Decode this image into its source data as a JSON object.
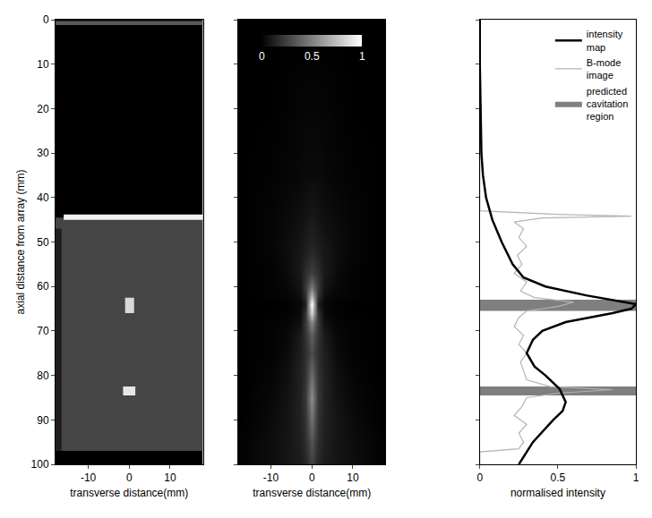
{
  "chart_data": [
    {
      "type": "image",
      "xlabel": "transverse distance(mm)",
      "ylabel": "axial distance from array (mm)",
      "xlim": [
        -18,
        18
      ],
      "xticks": [
        -10,
        0,
        10
      ],
      "ylim": [
        100,
        0
      ],
      "yticks": [
        0,
        10,
        20,
        30,
        40,
        50,
        60,
        70,
        80,
        90,
        100
      ],
      "regions": [
        {
          "x": [
            -18,
            18
          ],
          "y": [
            0,
            100
          ],
          "value": 0
        },
        {
          "x": [
            -18,
            18
          ],
          "y": [
            0.3,
            1.2
          ],
          "value": 0.35
        },
        {
          "x": [
            -18,
            18
          ],
          "y": [
            44.5,
            97
          ],
          "value": 0.27
        },
        {
          "x": [
            -18,
            -16.5
          ],
          "y": [
            47,
            97
          ],
          "value": 0.12
        },
        {
          "x": [
            -16,
            18
          ],
          "y": [
            43.8,
            45
          ],
          "value": 0.95
        },
        {
          "x": [
            -1,
            1.2
          ],
          "y": [
            62.5,
            66
          ],
          "value": 0.85
        },
        {
          "x": [
            -1.5,
            1.5
          ],
          "y": [
            82.5,
            84.5
          ],
          "value": 0.9
        }
      ]
    },
    {
      "type": "heatmap",
      "xlabel": "transverse distance(mm)",
      "tick_labels": "x",
      "xlim": [
        -18,
        18
      ],
      "xticks": [
        -10,
        0,
        10
      ],
      "ylim": [
        100,
        0
      ],
      "yticks": [
        0,
        10,
        20,
        30,
        40,
        50,
        60,
        70,
        80,
        90,
        100
      ],
      "x": [
        -17,
        -10,
        -6,
        -3,
        -1.5,
        0,
        1.5,
        3,
        6,
        10,
        17
      ],
      "y": [
        0,
        20,
        35,
        45,
        52,
        57,
        60,
        62,
        64,
        66,
        68,
        71,
        75,
        80,
        85,
        90,
        95,
        100
      ],
      "cells": [
        [
          0,
          0,
          0,
          0,
          0,
          0,
          0,
          0,
          0,
          0,
          0
        ],
        [
          0,
          0,
          0.01,
          0.02,
          0.02,
          0.02,
          0.02,
          0.02,
          0.01,
          0,
          0
        ],
        [
          0,
          0.01,
          0.02,
          0.03,
          0.04,
          0.04,
          0.04,
          0.03,
          0.02,
          0.01,
          0
        ],
        [
          0,
          0.02,
          0.04,
          0.06,
          0.08,
          0.1,
          0.08,
          0.06,
          0.04,
          0.02,
          0
        ],
        [
          0,
          0.02,
          0.05,
          0.09,
          0.12,
          0.15,
          0.12,
          0.09,
          0.05,
          0.02,
          0
        ],
        [
          0,
          0.01,
          0.04,
          0.1,
          0.18,
          0.25,
          0.18,
          0.1,
          0.04,
          0.01,
          0
        ],
        [
          0,
          0.01,
          0.03,
          0.08,
          0.22,
          0.45,
          0.22,
          0.08,
          0.03,
          0.01,
          0
        ],
        [
          0,
          0.01,
          0.02,
          0.05,
          0.2,
          0.7,
          0.2,
          0.05,
          0.02,
          0.01,
          0
        ],
        [
          0,
          0,
          0.01,
          0.03,
          0.12,
          1,
          0.12,
          0.03,
          0.01,
          0,
          0
        ],
        [
          0,
          0,
          0.01,
          0.04,
          0.2,
          0.85,
          0.2,
          0.04,
          0.01,
          0,
          0
        ],
        [
          0,
          0.01,
          0.02,
          0.06,
          0.22,
          0.55,
          0.22,
          0.06,
          0.02,
          0.01,
          0
        ],
        [
          0,
          0.01,
          0.03,
          0.1,
          0.2,
          0.37,
          0.2,
          0.1,
          0.03,
          0.01,
          0
        ],
        [
          0,
          0.01,
          0.04,
          0.12,
          0.18,
          0.3,
          0.18,
          0.12,
          0.04,
          0.01,
          0
        ],
        [
          0,
          0.02,
          0.06,
          0.13,
          0.2,
          0.43,
          0.2,
          0.13,
          0.06,
          0.02,
          0
        ],
        [
          0,
          0.03,
          0.07,
          0.13,
          0.22,
          0.55,
          0.22,
          0.13,
          0.07,
          0.03,
          0
        ],
        [
          0,
          0.04,
          0.08,
          0.13,
          0.2,
          0.45,
          0.2,
          0.13,
          0.08,
          0.04,
          0
        ],
        [
          0.01,
          0.05,
          0.08,
          0.12,
          0.18,
          0.33,
          0.18,
          0.12,
          0.08,
          0.05,
          0.01
        ],
        [
          0.01,
          0.05,
          0.08,
          0.11,
          0.15,
          0.25,
          0.15,
          0.11,
          0.08,
          0.05,
          0.01
        ]
      ],
      "colorbar": {
        "range": [
          0,
          1
        ],
        "ticks": [
          0,
          0.5,
          1
        ]
      }
    },
    {
      "type": "line",
      "xlabel": "normalised intensity",
      "tick_labels": "x",
      "legend": "upper right",
      "xlim": [
        0,
        1
      ],
      "xticks": [
        0,
        0.5,
        1
      ],
      "ylim": [
        100,
        0
      ],
      "yticks": [
        0,
        10,
        20,
        30,
        40,
        50,
        60,
        70,
        80,
        90,
        100
      ],
      "series": [
        {
          "name": "intensity map",
          "color": "#000000",
          "type": "line",
          "y": [
            0,
            10,
            20,
            30,
            35,
            40,
            45,
            50,
            55,
            58,
            60,
            62,
            64,
            65,
            66,
            68,
            70,
            72,
            75,
            78,
            80,
            83,
            86,
            88,
            90,
            95,
            100
          ],
          "values": [
            0,
            0,
            0.005,
            0.01,
            0.02,
            0.04,
            0.08,
            0.14,
            0.21,
            0.28,
            0.42,
            0.68,
            1,
            0.97,
            0.85,
            0.55,
            0.4,
            0.34,
            0.3,
            0.35,
            0.42,
            0.51,
            0.55,
            0.53,
            0.47,
            0.34,
            0.25
          ]
        },
        {
          "name": "B-mode image",
          "color": "#b4b4b4",
          "type": "line",
          "y": [
            0,
            43,
            43.8,
            44.2,
            44.6,
            45.5,
            47,
            49,
            51,
            53,
            55,
            57,
            59,
            61,
            62.5,
            63.5,
            64.5,
            65.5,
            67,
            69,
            71,
            73,
            75,
            77,
            79,
            81,
            82.5,
            83.2,
            84,
            85,
            87,
            89,
            91,
            93,
            95,
            96.5,
            97.2,
            100
          ],
          "values": [
            0,
            0,
            0.5,
            0.97,
            0.4,
            0.22,
            0.28,
            0.25,
            0.3,
            0.24,
            0.27,
            0.22,
            0.3,
            0.26,
            0.35,
            0.6,
            0.5,
            0.3,
            0.25,
            0.22,
            0.28,
            0.25,
            0.3,
            0.26,
            0.28,
            0.3,
            0.45,
            0.85,
            0.5,
            0.3,
            0.27,
            0.22,
            0.3,
            0.25,
            0.28,
            0.25,
            0,
            0
          ]
        },
        {
          "name": "predicted cavitation region",
          "color": "#7f7f7f",
          "type": "area",
          "regions": [
            [
              63,
              65.5
            ],
            [
              82.5,
              84.5
            ]
          ]
        }
      ]
    }
  ]
}
